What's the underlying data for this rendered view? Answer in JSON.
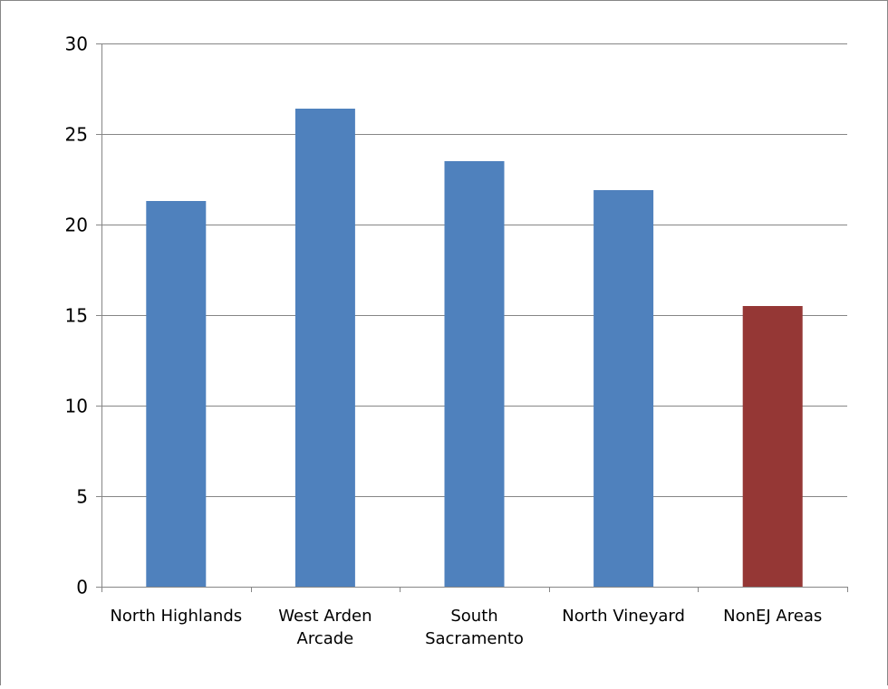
{
  "chart_data": {
    "type": "bar",
    "title": "",
    "xlabel": "",
    "ylabel": "",
    "ylim": [
      0,
      30
    ],
    "yticks": [
      "0",
      "5",
      "10",
      "15",
      "20",
      "25",
      "30"
    ],
    "grid": true,
    "legend": "none",
    "categories": [
      [
        "North Highlands"
      ],
      [
        "West Arden",
        "Arcade"
      ],
      [
        "South",
        "Sacramento"
      ],
      [
        "North Vineyard"
      ],
      [
        "NonEJ Areas"
      ]
    ],
    "values": [
      21.3,
      26.4,
      23.5,
      21.9,
      15.5
    ],
    "bar_colors": [
      "#4f81bd",
      "#4f81bd",
      "#4f81bd",
      "#4f81bd",
      "#953735"
    ]
  }
}
